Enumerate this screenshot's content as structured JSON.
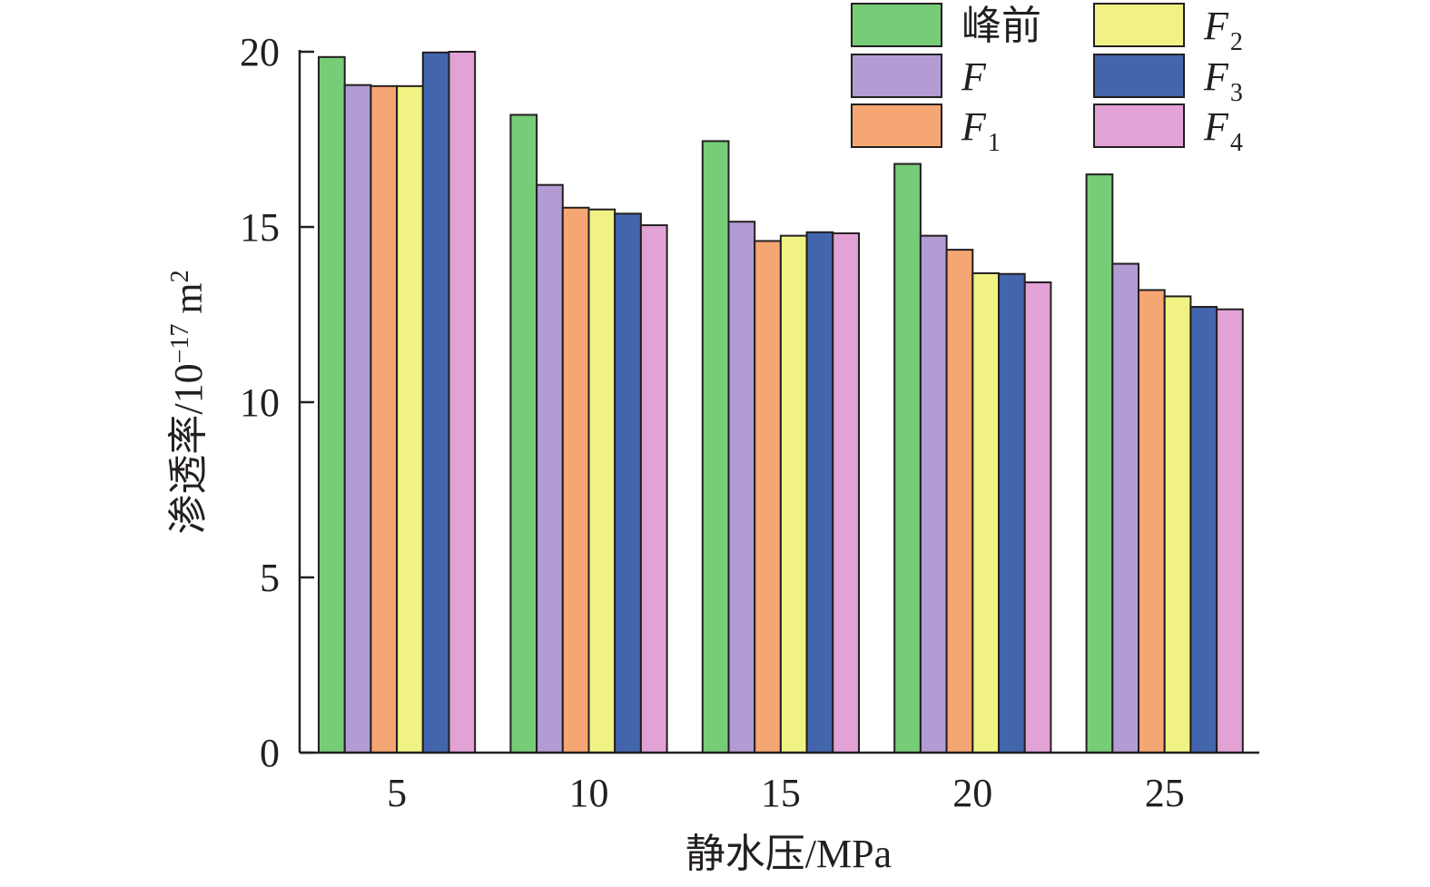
{
  "chart_data": {
    "type": "bar",
    "xlabel": "静水压/MPa",
    "ylabel": "渗透率/10",
    "ylabel_exponent": "−17",
    "ylabel_unit": " m",
    "ylabel_unit_exponent": "2",
    "categories": [
      "5",
      "10",
      "15",
      "20",
      "25"
    ],
    "ylim": [
      0,
      20
    ],
    "yticks": [
      "0",
      "5",
      "10",
      "15",
      "20"
    ],
    "series": [
      {
        "name": "峰前",
        "color": "#77cc77",
        "values": [
          19.85,
          18.2,
          17.45,
          16.8,
          16.5
        ]
      },
      {
        "name": "F",
        "name_sub": "",
        "color": "#b39cd3",
        "values": [
          19.05,
          16.2,
          15.15,
          14.75,
          13.95
        ]
      },
      {
        "name": "F",
        "name_sub": "1",
        "color": "#f5a672",
        "values": [
          19.02,
          15.55,
          14.6,
          14.35,
          13.2
        ]
      },
      {
        "name": "F",
        "name_sub": "2",
        "color": "#f0f384",
        "values": [
          19.02,
          15.5,
          14.75,
          13.68,
          13.02
        ]
      },
      {
        "name": "F",
        "name_sub": "3",
        "color": "#4365ac",
        "values": [
          19.98,
          15.38,
          14.85,
          13.66,
          12.72
        ]
      },
      {
        "name": "F",
        "name_sub": "4",
        "color": "#e3a2d6",
        "values": [
          20.0,
          15.05,
          14.82,
          13.42,
          12.65
        ]
      }
    ],
    "legend": {
      "position": "top-right",
      "columns": 2
    },
    "grid": false
  }
}
